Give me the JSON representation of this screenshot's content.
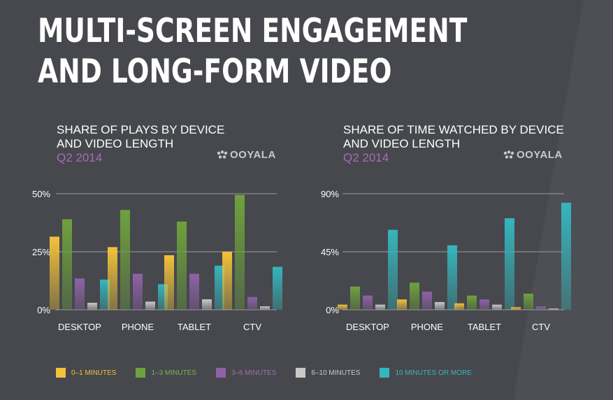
{
  "title_lines": [
    "MULTI-SCREEN ENGAGEMENT",
    "AND LONG-FORM VIDEO"
  ],
  "brand": "OOYALA",
  "colors": {
    "background": "#46484d",
    "gridline": "#9a9ca0",
    "subtitle": "#a56cb4"
  },
  "series_colors": [
    "#f2c23a",
    "#6ea23c",
    "#8f62a8",
    "#c9c9c9",
    "#35b6bd"
  ],
  "legend": [
    {
      "label": "0–1 MINUTES",
      "color": "#f2c23a",
      "text_color": "#eec13d"
    },
    {
      "label": "1–3 MINUTES",
      "color": "#6ea23c",
      "text_color": "#7fb04a"
    },
    {
      "label": "3–6 MINUTES",
      "color": "#8f62a8",
      "text_color": "#a06db6"
    },
    {
      "label": "6–10 MINUTES",
      "color": "#c9c9c9",
      "text_color": "#c9c9c9"
    },
    {
      "label": "10 MINUTES OR MORE",
      "color": "#35b6bd",
      "text_color": "#3ab5c0"
    }
  ],
  "chart_data": [
    {
      "type": "bar",
      "title_lines": [
        "SHARE OF PLAYS BY DEVICE",
        "AND VIDEO LENGTH"
      ],
      "subtitle": "Q2 2014",
      "categories": [
        "DESKTOP",
        "PHONE",
        "TABLET",
        "CTV"
      ],
      "series": [
        {
          "name": "0–1 MINUTES",
          "values": [
            31.5,
            27,
            23.5,
            25
          ]
        },
        {
          "name": "1–3 MINUTES",
          "values": [
            39,
            43,
            38,
            49.5
          ]
        },
        {
          "name": "3–6 MINUTES",
          "values": [
            13.5,
            15.5,
            15.5,
            5.5
          ]
        },
        {
          "name": "6–10 MINUTES",
          "values": [
            3,
            3.5,
            4.5,
            1.5
          ]
        },
        {
          "name": "10 MINUTES OR MORE",
          "values": [
            13,
            11,
            19,
            18.5
          ]
        }
      ],
      "yticks": [
        0,
        25,
        50
      ],
      "ytick_labels": [
        "0%",
        "25%",
        "50%"
      ],
      "ylim": [
        0,
        50
      ],
      "grid": true
    },
    {
      "type": "bar",
      "title_lines": [
        "SHARE OF TIME WATCHED BY DEVICE",
        "AND VIDEO LENGTH"
      ],
      "subtitle": "Q2 2014",
      "categories": [
        "DESKTOP",
        "PHONE",
        "TABLET",
        "CTV"
      ],
      "series": [
        {
          "name": "0–1 MINUTES",
          "values": [
            4,
            8,
            5,
            2
          ]
        },
        {
          "name": "1–3 MINUTES",
          "values": [
            18,
            21,
            11,
            12.5
          ]
        },
        {
          "name": "3–6 MINUTES",
          "values": [
            11,
            14,
            8,
            2.5
          ]
        },
        {
          "name": "6–10 MINUTES",
          "values": [
            4,
            6,
            4,
            1
          ]
        },
        {
          "name": "10 MINUTES OR MORE",
          "values": [
            62,
            50,
            71,
            83
          ]
        }
      ],
      "yticks": [
        0,
        45,
        90
      ],
      "ytick_labels": [
        "0%",
        "45%",
        "90%"
      ],
      "ylim": [
        0,
        90
      ],
      "grid": true
    }
  ]
}
